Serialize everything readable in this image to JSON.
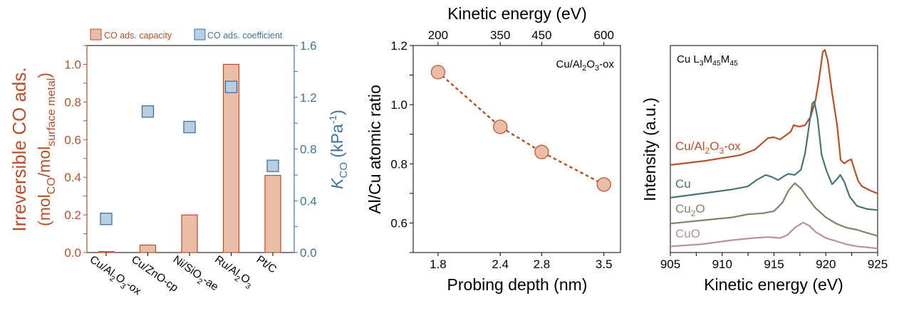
{
  "colors": {
    "capacity": "#b5502a",
    "capacity_fill": "#ebbca8",
    "coefficient": "#3e73a0",
    "coefficient_fill": "#b7cfe2",
    "ratio_line": "#b5502a",
    "ratio_fill": "#ebbca8",
    "spec_cu_al2o3_ox": "#b5502a",
    "spec_cu": "#477478",
    "spec_cu2o": "#86806a",
    "spec_cuo": "#b88ea8",
    "axis": "#000000"
  },
  "chart_data": [
    {
      "type": "bar",
      "legend": [
        "CO ads. capacity",
        "CO ads. coefficient"
      ],
      "legend_position": "top",
      "categories": [
        {
          "main": "Cu/Al",
          "sub": "2",
          "rest": "O",
          "sub2": "3",
          "tail": "-ox"
        },
        {
          "main": "Cu/ZnO-cp",
          "sub": "",
          "rest": "",
          "sub2": "",
          "tail": ""
        },
        {
          "main": "Ni/SiO",
          "sub": "2",
          "rest": "-ae",
          "sub2": "",
          "tail": ""
        },
        {
          "main": "Ru/Al",
          "sub": "2",
          "rest": "O",
          "sub2": "3",
          "tail": ""
        },
        {
          "main": "Pt/C",
          "sub": "",
          "rest": "",
          "sub2": "",
          "tail": ""
        }
      ],
      "category_names": [
        "Cu/Al2O3-ox",
        "Cu/ZnO-cp",
        "Ni/SiO2-ae",
        "Ru/Al2O3",
        "Pt/C"
      ],
      "series": [
        {
          "name": "CO ads. capacity",
          "axis": "left",
          "kind": "bar",
          "values": [
            0.005,
            0.04,
            0.2,
            1.0,
            0.41
          ]
        },
        {
          "name": "CO ads. coefficient",
          "axis": "right",
          "kind": "square",
          "values": [
            0.26,
            1.09,
            0.97,
            1.28,
            0.67
          ]
        }
      ],
      "ylabel_left_line1": "Irreversible CO ads.",
      "ylabel_left_line2": {
        "pre": "(mol",
        "sub1": "CO",
        "mid": "/mol",
        "sub2": "surface metal",
        "post": ")"
      },
      "ylabel_right": {
        "k": "K",
        "sub": "CO",
        "rest": " (kPa",
        "sup": "-1",
        "close": ")"
      },
      "ylim_left": [
        0,
        1.1
      ],
      "ylim_right": [
        0,
        1.6
      ],
      "yticks_left": [
        "0.0",
        "0.2",
        "0.4",
        "0.6",
        "0.8",
        "1.0"
      ],
      "yticks_left_values": [
        0,
        0.2,
        0.4,
        0.6,
        0.8,
        1.0
      ],
      "yticks_right": [
        "0.0",
        "0.4",
        "0.8",
        "1.2",
        "1.6"
      ],
      "yticks_right_values": [
        0,
        0.4,
        0.8,
        1.2,
        1.6
      ],
      "grid": false
    },
    {
      "type": "scatter",
      "title_top_axis": "Kinetic energy (eV)",
      "top_ticks": [
        "200",
        "350",
        "450",
        "600"
      ],
      "top_tick_values": [
        200,
        350,
        450,
        600
      ],
      "xlabel": "Probing depth (nm)",
      "bottom_ticks": [
        "1.8",
        "2.4",
        "2.8",
        "3.5"
      ],
      "ylabel": "Al/Cu atomic ratio",
      "yticks": [
        "0.6",
        "0.8",
        "1.0",
        "1.2"
      ],
      "ytick_values": [
        0.6,
        0.8,
        1.0,
        1.2
      ],
      "ylim": [
        0.5,
        1.2
      ],
      "xlim_kinetic_energy": [
        140,
        640
      ],
      "annotation": {
        "pre": "Cu/Al",
        "sub1": "2",
        "mid": "O",
        "sub2": "3",
        "post": "-ox"
      },
      "points": [
        {
          "kinetic_energy": 200,
          "depth": 1.8,
          "ratio": 1.11
        },
        {
          "kinetic_energy": 350,
          "depth": 2.4,
          "ratio": 0.925
        },
        {
          "kinetic_energy": 450,
          "depth": 2.8,
          "ratio": 0.84
        },
        {
          "kinetic_energy": 600,
          "depth": 3.5,
          "ratio": 0.73
        }
      ],
      "line_style": "dotted",
      "grid": false
    },
    {
      "type": "line",
      "title": {
        "pre": "Cu L",
        "s1": "3",
        "m": "M",
        "s2": "45",
        "m2": "M",
        "s3": "45"
      },
      "xlabel": "Kinetic energy (eV)",
      "ylabel": "Intensity (a.u.)",
      "xlim": [
        905,
        925
      ],
      "xticks": [
        "905",
        "910",
        "915",
        "920",
        "925"
      ],
      "xtick_values": [
        905,
        910,
        915,
        920,
        925
      ],
      "ylim": [
        0,
        1
      ],
      "grid": false,
      "series": [
        {
          "name": "Cu/Al2O3-ox",
          "label": {
            "pre": "Cu/Al",
            "sub1": "2",
            "mid": "O",
            "sub2": "3",
            "post": "-ox"
          },
          "color_key": "spec_cu_al2o3_ox",
          "x": [
            905.0,
            908.37,
            911.8,
            913.18,
            914.42,
            914.97,
            915.58,
            916.62,
            916.89,
            917.44,
            917.99,
            918.54,
            919.02,
            919.36,
            919.71,
            919.91,
            920.19,
            920.6,
            921.08,
            921.43,
            921.77,
            922.11,
            922.46,
            922.8,
            923.14,
            923.49,
            924.31,
            925.0
          ],
          "y": [
            0.423,
            0.443,
            0.471,
            0.498,
            0.553,
            0.557,
            0.546,
            0.584,
            0.615,
            0.608,
            0.615,
            0.656,
            0.739,
            0.842,
            0.969,
            0.979,
            0.928,
            0.773,
            0.619,
            0.447,
            0.43,
            0.443,
            0.45,
            0.395,
            0.344,
            0.32,
            0.299,
            0.285
          ]
        },
        {
          "name": "Cu",
          "label": {
            "pre": "Cu",
            "sub1": "",
            "mid": "",
            "sub2": "",
            "post": ""
          },
          "color_key": "spec_cu",
          "x": [
            905.0,
            908.0,
            911.0,
            912.5,
            913.3,
            914.2,
            914.8,
            915.4,
            916.0,
            916.4,
            917.0,
            917.6,
            918.0,
            918.4,
            918.7,
            918.9,
            919.2,
            919.6,
            920.1,
            920.6,
            921.0,
            921.4,
            921.8,
            922.3,
            923.0,
            924.0,
            925.0
          ],
          "y": [
            0.265,
            0.285,
            0.305,
            0.32,
            0.35,
            0.375,
            0.365,
            0.35,
            0.37,
            0.38,
            0.375,
            0.4,
            0.48,
            0.62,
            0.72,
            0.73,
            0.65,
            0.47,
            0.39,
            0.33,
            0.35,
            0.375,
            0.34,
            0.27,
            0.225,
            0.21,
            0.205
          ]
        },
        {
          "name": "Cu2O",
          "label": {
            "pre": "Cu",
            "sub1": "2",
            "mid": "O",
            "sub2": "",
            "post": ""
          },
          "color_key": "spec_cu2o",
          "x": [
            905.0,
            908.0,
            911.0,
            912.5,
            914.0,
            915.0,
            915.8,
            916.4,
            917.0,
            917.6,
            918.3,
            919.0,
            920.0,
            921.0,
            922.0,
            923.0,
            924.0,
            925.0
          ],
          "y": [
            0.14,
            0.155,
            0.17,
            0.185,
            0.19,
            0.2,
            0.24,
            0.3,
            0.335,
            0.31,
            0.26,
            0.215,
            0.17,
            0.14,
            0.12,
            0.11,
            0.095,
            0.08
          ]
        },
        {
          "name": "CuO",
          "label": {
            "pre": "CuO",
            "sub1": "",
            "mid": "",
            "sub2": "",
            "post": ""
          },
          "color_key": "spec_cuo",
          "x": [
            905.0,
            908.0,
            911.0,
            913.0,
            914.5,
            915.6,
            916.3,
            917.0,
            917.8,
            918.4,
            919.0,
            920.0,
            921.0,
            922.0,
            923.0,
            924.0,
            925.0
          ],
          "y": [
            0.03,
            0.04,
            0.06,
            0.07,
            0.075,
            0.07,
            0.085,
            0.12,
            0.145,
            0.13,
            0.1,
            0.07,
            0.055,
            0.04,
            0.03,
            0.025,
            0.02
          ]
        }
      ]
    }
  ]
}
